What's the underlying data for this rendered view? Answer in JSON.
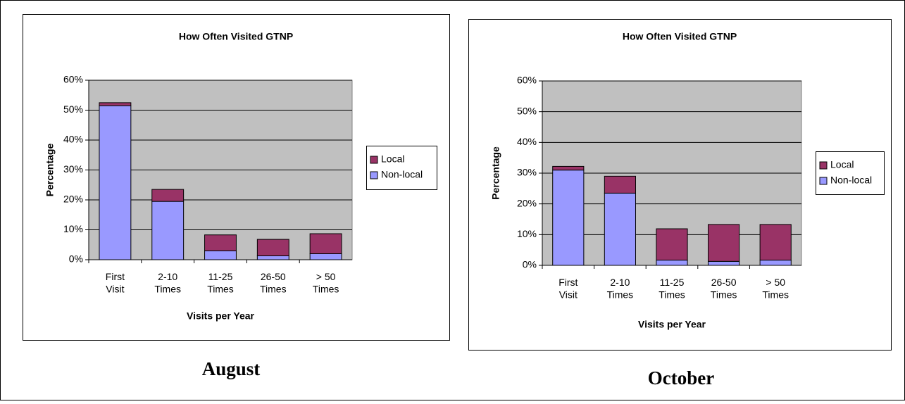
{
  "chart_data": [
    {
      "type": "bar",
      "stacked": true,
      "title": "How Often Visited GTNP",
      "caption": "August",
      "x_label": "Visits per Year",
      "y_label": "Percentage",
      "categories": [
        "First\nVisit",
        "2-10\nTimes",
        "11-25\nTimes",
        "26-50\nTimes",
        "> 50\nTimes"
      ],
      "series": [
        {
          "name": "Non-local",
          "color": "#9999ff",
          "values": [
            51.5,
            19.5,
            3,
            1.3,
            2
          ]
        },
        {
          "name": "Local",
          "color": "#993366",
          "values": [
            1,
            4,
            5.3,
            5.5,
            6.7
          ]
        }
      ],
      "ylim": [
        0,
        60
      ],
      "yticks": [
        {
          "value": 0,
          "label": "0%"
        },
        {
          "value": 10,
          "label": "10%"
        },
        {
          "value": 20,
          "label": "20%"
        },
        {
          "value": 30,
          "label": "30%"
        },
        {
          "value": 40,
          "label": "40%"
        },
        {
          "value": 50,
          "label": "50%"
        },
        {
          "value": 60,
          "label": "60%"
        }
      ],
      "grid": true,
      "legend": "right"
    },
    {
      "type": "bar",
      "stacked": true,
      "title": "How Often Visited GTNP",
      "caption": "October",
      "x_label": "Visits per Year",
      "y_label": "Percentage",
      "categories": [
        "First\nVisit",
        "2-10\nTimes",
        "11-25\nTimes",
        "26-50\nTimes",
        "> 50\nTimes"
      ],
      "series": [
        {
          "name": "Non-local",
          "color": "#9999ff",
          "values": [
            31,
            23.5,
            1.7,
            1.3,
            1.7
          ]
        },
        {
          "name": "Local",
          "color": "#993366",
          "values": [
            1.2,
            5.5,
            10.2,
            12,
            11.6
          ]
        }
      ],
      "ylim": [
        0,
        60
      ],
      "yticks": [
        {
          "value": 0,
          "label": "0%"
        },
        {
          "value": 10,
          "label": "10%"
        },
        {
          "value": 20,
          "label": "20%"
        },
        {
          "value": 30,
          "label": "30%"
        },
        {
          "value": 40,
          "label": "40%"
        },
        {
          "value": 50,
          "label": "50%"
        },
        {
          "value": 60,
          "label": "60%"
        }
      ],
      "grid": true,
      "legend": "right"
    }
  ]
}
